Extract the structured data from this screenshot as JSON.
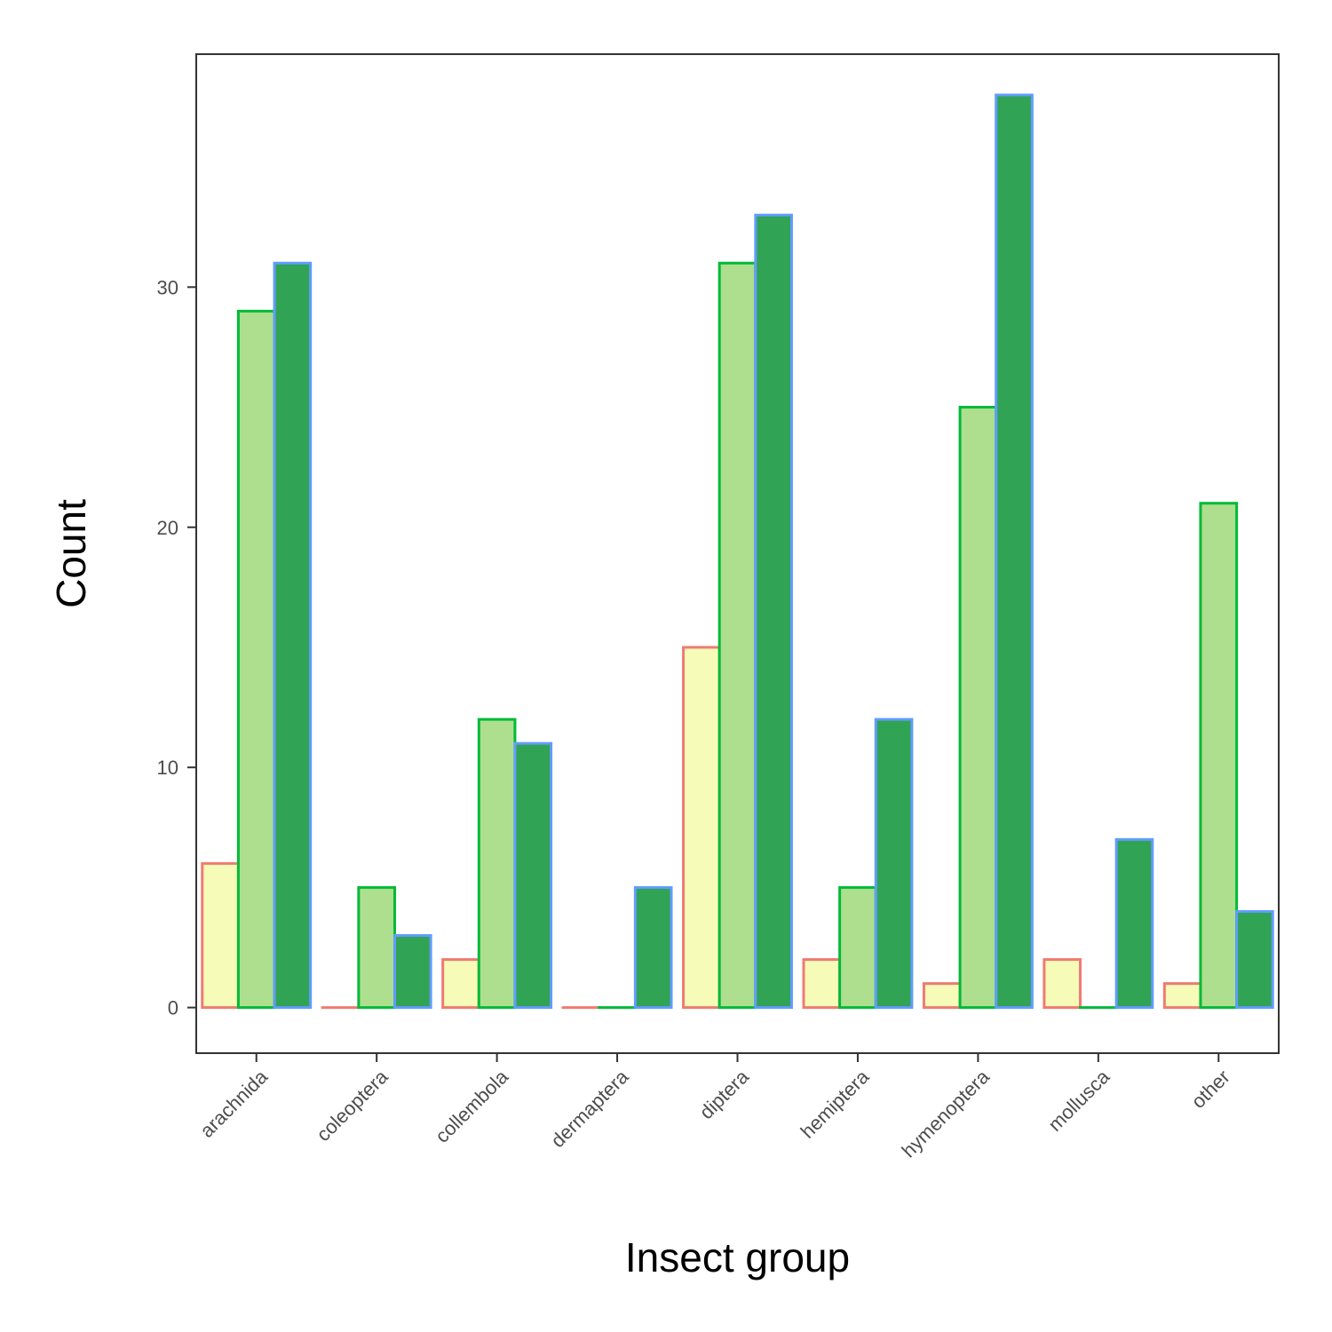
{
  "chart_data": {
    "type": "bar",
    "title": "",
    "xlabel": "Insect group",
    "ylabel": "Count",
    "ylim": [
      -1.9,
      39.7
    ],
    "yticks": [
      0,
      10,
      20,
      30
    ],
    "grid": false,
    "legend": "none",
    "categories": [
      "arachnida",
      "coleoptera",
      "collembola",
      "dermaptera",
      "diptera",
      "hemiptera",
      "hymenoptera",
      "mollusca",
      "other"
    ],
    "series": [
      {
        "fill": "#f7fbb8",
        "stroke": "#f07b72",
        "values": [
          6,
          0,
          2,
          0,
          15,
          2,
          1,
          2,
          1
        ]
      },
      {
        "fill": "#addf8e",
        "stroke": "#00ba38",
        "values": [
          29,
          5,
          12,
          0,
          31,
          5,
          25,
          0,
          21
        ]
      },
      {
        "fill": "#31a354",
        "stroke": "#619cff",
        "values": [
          31,
          3,
          11,
          5,
          33,
          12,
          38,
          7,
          4
        ]
      }
    ]
  }
}
